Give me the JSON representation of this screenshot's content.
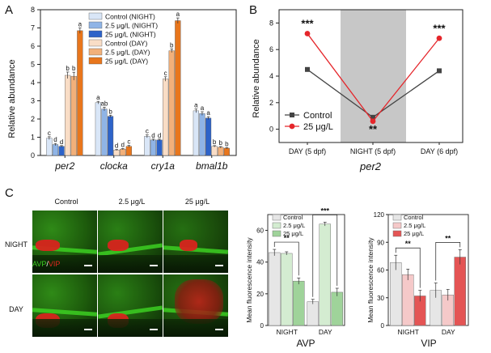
{
  "panels": {
    "a": "A",
    "b": "B",
    "c": "C"
  },
  "chart_data": [
    {
      "id": "A",
      "type": "bar",
      "ylabel": "Relative abundance",
      "ylim": [
        0,
        8
      ],
      "yticks": [
        "0",
        "1",
        "2",
        "3",
        "4",
        "5",
        "6",
        "7",
        "8"
      ],
      "categories": [
        "per2",
        "clocka",
        "cry1a",
        "bmal1b"
      ],
      "series": [
        {
          "name": "Control (NIGHT)",
          "color": "#d9e6f7",
          "values": [
            0.95,
            2.9,
            1.05,
            2.45
          ],
          "errors": [
            0.08,
            0.07,
            0.08,
            0.1
          ],
          "letters": [
            "c",
            "a",
            "c",
            "a"
          ]
        },
        {
          "name": "2.5 μg/L (NIGHT)",
          "color": "#8fb4e6",
          "values": [
            0.6,
            2.55,
            0.85,
            2.3
          ],
          "errors": [
            0.06,
            0.1,
            0.05,
            0.1
          ],
          "letters": [
            "d",
            "ab",
            "d",
            "a"
          ]
        },
        {
          "name": "25 μg/L (NIGHT)",
          "color": "#2d63c9",
          "values": [
            0.5,
            2.15,
            0.85,
            2.05
          ],
          "errors": [
            0.04,
            0.06,
            0.05,
            0.08
          ],
          "letters": [
            "d",
            "b",
            "d",
            "a"
          ]
        },
        {
          "name": "Control (DAY)",
          "color": "#f9ddc6",
          "values": [
            4.4,
            0.3,
            4.2,
            0.5
          ],
          "errors": [
            0.18,
            0.03,
            0.12,
            0.04
          ],
          "letters": [
            "b",
            "d",
            "c",
            "b"
          ]
        },
        {
          "name": "2.5 μg/L (DAY)",
          "color": "#f2b07a",
          "values": [
            4.35,
            0.35,
            5.75,
            0.45
          ],
          "errors": [
            0.22,
            0.03,
            0.1,
            0.04
          ],
          "letters": [
            "b",
            "d",
            "b",
            "b"
          ]
        },
        {
          "name": "25 μg/L (DAY)",
          "color": "#e8761c",
          "values": [
            6.85,
            0.5,
            7.4,
            0.4
          ],
          "errors": [
            0.15,
            0.05,
            0.15,
            0.03
          ],
          "letters": [
            "a",
            "c",
            "a",
            "b"
          ]
        }
      ]
    },
    {
      "id": "B",
      "type": "line",
      "ylabel": "Relative abundance",
      "xlabel": "per2",
      "ylim": [
        -1,
        9
      ],
      "yticks": [
        "0",
        "2",
        "4",
        "6",
        "8"
      ],
      "categories": [
        "DAY (5 dpf)",
        "NIGHT (5 dpf)",
        "DAY (6 dpf)"
      ],
      "shaded_category": "NIGHT (5 dpf)",
      "series": [
        {
          "name": "Control",
          "color": "#444444",
          "marker": "square",
          "values": [
            4.5,
            0.9,
            4.4
          ]
        },
        {
          "name": "25 μg/L",
          "color": "#e5262b",
          "marker": "circle",
          "values": [
            7.2,
            0.6,
            6.85
          ]
        }
      ],
      "annotations": [
        "***",
        "**",
        "***"
      ]
    },
    {
      "id": "C-AVP",
      "type": "bar",
      "title": "AVP",
      "ylabel": "Mean fluorescence intensity",
      "ylim": [
        0,
        70
      ],
      "yticks": [
        "0",
        "20",
        "40",
        "60"
      ],
      "categories": [
        "NIGHT",
        "DAY"
      ],
      "series": [
        {
          "name": "Control",
          "color": "#e6e6e6",
          "values": [
            46,
            15
          ],
          "errors": [
            2,
            1.5
          ]
        },
        {
          "name": "2.5 μg/L",
          "color": "#d4ecd1",
          "values": [
            45.5,
            64
          ],
          "errors": [
            1,
            1.2
          ]
        },
        {
          "name": "25 μg/L",
          "color": "#9fd39a",
          "values": [
            28,
            21
          ],
          "errors": [
            2,
            2.5
          ]
        }
      ],
      "annotations": [
        "**",
        "***"
      ]
    },
    {
      "id": "C-VIP",
      "type": "bar",
      "title": "VIP",
      "ylabel": "Mean fluorescence intensity",
      "ylim": [
        0,
        120
      ],
      "yticks": [
        "0",
        "30",
        "60",
        "90",
        "120"
      ],
      "categories": [
        "NIGHT",
        "DAY"
      ],
      "series": [
        {
          "name": "Control",
          "color": "#e6e6e6",
          "values": [
            68,
            38
          ],
          "errors": [
            8,
            8
          ]
        },
        {
          "name": "2.5 μg/L",
          "color": "#f5c9c9",
          "values": [
            55,
            33
          ],
          "errors": [
            6,
            6
          ]
        },
        {
          "name": "25 μg/L",
          "color": "#e45454",
          "values": [
            32,
            74
          ],
          "errors": [
            6,
            8
          ]
        }
      ],
      "annotations": [
        "**",
        "**"
      ]
    }
  ],
  "micrographs": {
    "columns": [
      "Control",
      "2.5 μg/L",
      "25 μg/L"
    ],
    "rows": [
      "NIGHT",
      "DAY"
    ],
    "stain_avp": "AVP",
    "stain_sep": "/",
    "stain_vip": "VIP",
    "colors": {
      "avp": "#3ccf22",
      "vip": "#d7241d"
    }
  }
}
